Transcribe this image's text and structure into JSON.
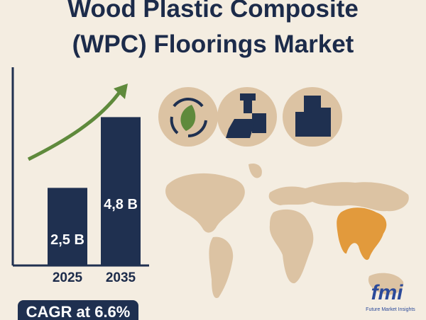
{
  "chart_data": {
    "type": "bar",
    "title": "Wood Plastic Composite (WPC) Floorings Market",
    "categories": [
      "2025",
      "2035"
    ],
    "values": [
      2.5,
      4.8
    ],
    "value_labels": [
      "2,5 B",
      "4,8 B"
    ],
    "color": "#1f3050",
    "ylim": [
      0,
      5.5
    ],
    "annotation": "CAGR at 6.6%"
  },
  "logo": {
    "mark": "fmi",
    "name": "Future Market Insights"
  }
}
